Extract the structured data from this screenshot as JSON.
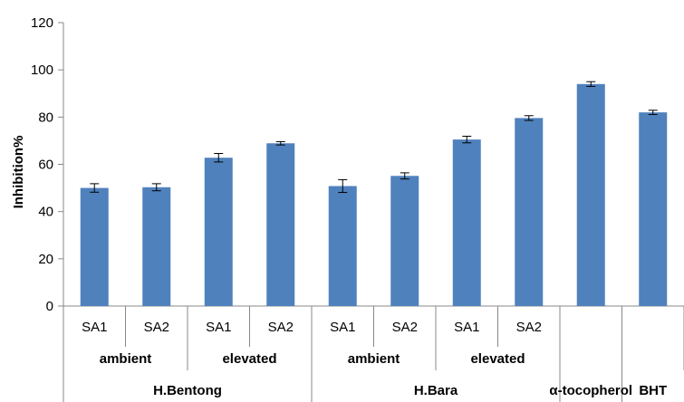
{
  "chart_data": {
    "type": "bar",
    "title": "",
    "xlabel": "",
    "ylabel": "Inhibition%",
    "ylim": [
      0,
      120
    ],
    "yticks": [
      "0",
      "20",
      "40",
      "60",
      "80",
      "100",
      "120"
    ],
    "grid": false,
    "legend": "none",
    "bar_color": "#4f81bd",
    "errorbar_color": "#000000",
    "categories": [
      "SA1",
      "SA2",
      "SA1",
      "SA2",
      "SA1",
      "SA2",
      "SA1",
      "SA2",
      "",
      ""
    ],
    "values": [
      50,
      50.3,
      62.8,
      68.9,
      50.8,
      55.1,
      70.5,
      79.6,
      94,
      82
    ],
    "errors": [
      1.8,
      1.5,
      1.8,
      0.7,
      2.7,
      1.3,
      1.4,
      1.0,
      1.0,
      0.9
    ],
    "level2_groups": [
      {
        "label": "ambient",
        "span": 2
      },
      {
        "label": "elevated",
        "span": 2
      },
      {
        "label": "ambient",
        "span": 2
      },
      {
        "label": "elevated",
        "span": 2
      }
    ],
    "level3_groups": [
      {
        "label": "H.Bentong",
        "span": 4
      },
      {
        "label": "H.Bara",
        "span": 4
      },
      {
        "label": "α-tocopherol",
        "span": 1
      },
      {
        "label": "BHT",
        "span": 1
      }
    ]
  }
}
